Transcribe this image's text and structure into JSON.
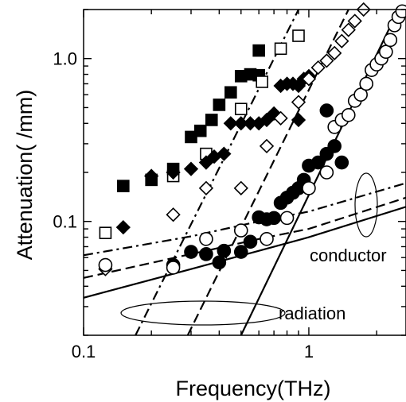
{
  "chart_data": {
    "type": "scatter",
    "xlabel": "Frequency(THz)",
    "ylabel": "Attenuation( /mm)",
    "xscale": "log",
    "yscale": "log",
    "xlim": [
      0.1,
      2.7
    ],
    "ylim": [
      0.02,
      2.0
    ],
    "grid": false,
    "x_ticks": [
      {
        "value": 0.1,
        "label": "0.1"
      },
      {
        "value": 1,
        "label": "1"
      }
    ],
    "y_ticks": [
      {
        "value": 0.1,
        "label": "0.1"
      },
      {
        "value": 1.0,
        "label": "1.0"
      }
    ],
    "annotations": {
      "conductor": "conductor",
      "radiation": "radiation"
    },
    "series": [
      {
        "marker": "filled-square",
        "points": [
          [
            0.15,
            0.165
          ],
          [
            0.2,
            0.18
          ],
          [
            0.25,
            0.21
          ],
          [
            0.3,
            0.33
          ],
          [
            0.33,
            0.36
          ],
          [
            0.37,
            0.42
          ],
          [
            0.4,
            0.52
          ],
          [
            0.45,
            0.62
          ],
          [
            0.5,
            0.78
          ],
          [
            0.55,
            0.8
          ],
          [
            0.6,
            1.12
          ],
          [
            0.6,
            0.79
          ]
        ]
      },
      {
        "marker": "open-square",
        "points": [
          [
            0.125,
            0.085
          ],
          [
            0.25,
            0.19
          ],
          [
            0.35,
            0.26
          ],
          [
            0.5,
            0.49
          ],
          [
            0.62,
            0.72
          ],
          [
            0.75,
            1.15
          ],
          [
            0.9,
            1.38
          ]
        ]
      },
      {
        "marker": "filled-diamond",
        "points": [
          [
            0.15,
            0.092
          ],
          [
            0.2,
            0.19
          ],
          [
            0.25,
            0.2
          ],
          [
            0.3,
            0.21
          ],
          [
            0.35,
            0.23
          ],
          [
            0.38,
            0.25
          ],
          [
            0.42,
            0.26
          ],
          [
            0.45,
            0.4
          ],
          [
            0.5,
            0.4
          ],
          [
            0.55,
            0.4
          ],
          [
            0.6,
            0.4
          ],
          [
            0.65,
            0.42
          ],
          [
            0.7,
            0.46
          ],
          [
            0.75,
            0.68
          ],
          [
            0.8,
            0.7
          ],
          [
            0.85,
            0.7
          ],
          [
            0.9,
            0.68
          ],
          [
            0.95,
            0.75
          ],
          [
            1.0,
            0.78
          ],
          [
            0.9,
            0.42
          ]
        ]
      },
      {
        "marker": "open-diamond",
        "points": [
          [
            0.125,
            0.051
          ],
          [
            0.25,
            0.11
          ],
          [
            0.35,
            0.16
          ],
          [
            0.5,
            0.16
          ],
          [
            0.65,
            0.29
          ],
          [
            0.75,
            0.43
          ],
          [
            0.9,
            0.54
          ],
          [
            1.0,
            0.75
          ],
          [
            1.1,
            0.88
          ],
          [
            1.2,
            0.97
          ],
          [
            1.3,
            1.08
          ],
          [
            1.4,
            1.28
          ],
          [
            1.5,
            1.5
          ],
          [
            1.6,
            1.7
          ],
          [
            1.75,
            2.0
          ]
        ]
      },
      {
        "marker": "filled-circle",
        "points": [
          [
            0.25,
            0.054
          ],
          [
            0.3,
            0.065
          ],
          [
            0.35,
            0.063
          ],
          [
            0.4,
            0.056
          ],
          [
            0.42,
            0.066
          ],
          [
            0.5,
            0.065
          ],
          [
            0.55,
            0.075
          ],
          [
            0.6,
            0.106
          ],
          [
            0.65,
            0.103
          ],
          [
            0.7,
            0.105
          ],
          [
            0.75,
            0.13
          ],
          [
            0.8,
            0.14
          ],
          [
            0.85,
            0.15
          ],
          [
            0.9,
            0.16
          ],
          [
            0.95,
            0.18
          ],
          [
            1.0,
            0.22
          ],
          [
            1.1,
            0.23
          ],
          [
            1.2,
            0.26
          ],
          [
            1.3,
            0.29
          ],
          [
            1.4,
            0.23
          ],
          [
            1.2,
            0.48
          ]
        ]
      },
      {
        "marker": "open-circle",
        "points": [
          [
            0.125,
            0.054
          ],
          [
            0.25,
            0.052
          ],
          [
            0.35,
            0.078
          ],
          [
            0.5,
            0.088
          ],
          [
            0.65,
            0.078
          ],
          [
            0.8,
            0.105
          ],
          [
            1.0,
            0.16
          ],
          [
            1.2,
            0.2
          ],
          [
            1.3,
            0.38
          ],
          [
            1.4,
            0.42
          ],
          [
            1.5,
            0.45
          ],
          [
            1.6,
            0.55
          ],
          [
            1.7,
            0.6
          ],
          [
            1.8,
            0.7
          ],
          [
            1.9,
            0.85
          ],
          [
            2.0,
            0.92
          ],
          [
            2.1,
            1.0
          ],
          [
            2.2,
            1.1
          ],
          [
            2.3,
            1.3
          ],
          [
            2.4,
            1.6
          ],
          [
            2.5,
            1.8
          ],
          [
            2.6,
            1.95
          ]
        ]
      }
    ],
    "curves": [
      {
        "style": "solid",
        "group": "conductor",
        "points": [
          [
            0.1,
            0.034
          ],
          [
            0.3,
            0.051
          ],
          [
            0.6,
            0.066
          ],
          [
            1.0,
            0.08
          ],
          [
            2.7,
            0.123
          ]
        ]
      },
      {
        "style": "dashed",
        "group": "conductor",
        "points": [
          [
            0.1,
            0.045
          ],
          [
            0.3,
            0.063
          ],
          [
            0.6,
            0.078
          ],
          [
            1.0,
            0.09
          ],
          [
            2.7,
            0.14
          ]
        ]
      },
      {
        "style": "dash-dot",
        "group": "conductor",
        "points": [
          [
            0.1,
            0.062
          ],
          [
            0.3,
            0.081
          ],
          [
            0.6,
            0.1
          ],
          [
            1.0,
            0.115
          ],
          [
            2.7,
            0.172
          ]
        ]
      },
      {
        "style": "solid",
        "group": "radiation",
        "points": [
          [
            0.5,
            0.02
          ],
          [
            2.5,
            2.0
          ]
        ]
      },
      {
        "style": "dashed",
        "group": "radiation",
        "points": [
          [
            0.29,
            0.02
          ],
          [
            1.5,
            2.0
          ]
        ]
      },
      {
        "style": "dash-dot",
        "group": "radiation",
        "points": [
          [
            0.17,
            0.02
          ],
          [
            0.9,
            2.0
          ]
        ]
      }
    ]
  }
}
